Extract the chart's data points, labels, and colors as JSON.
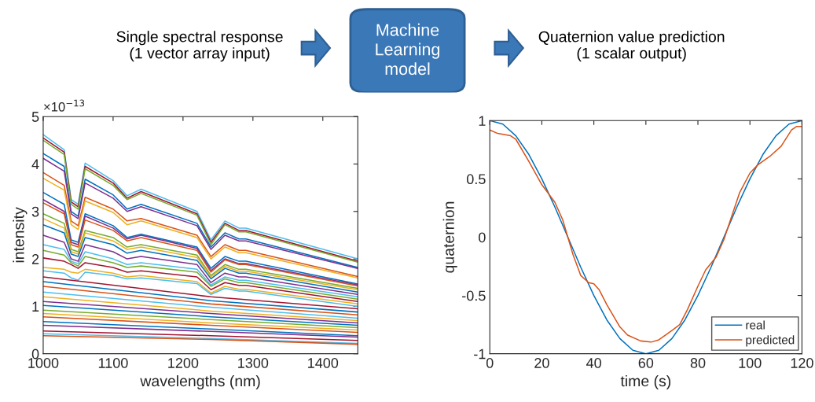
{
  "chart_data": [
    {
      "type": "other",
      "annotations": [
        "Single spectral response\n(1 vector array input)",
        "Machine\nLearning\nmodel",
        "Quaternion value prediction\n(1 scalar output)"
      ]
    },
    {
      "type": "line",
      "xlabel": "wavelengths (nm)",
      "ylabel": "intensity",
      "annotations": [
        "×10$^{−13}$"
      ],
      "xlim": [
        1000,
        1450
      ],
      "ylim": [
        0,
        5
      ],
      "xticks": [
        1000,
        1100,
        1200,
        1300,
        1400
      ],
      "yticks": [
        0,
        1,
        2,
        3,
        4,
        5
      ],
      "grid": false,
      "legend": false,
      "x": [
        1000,
        1030,
        1040,
        1050,
        1060,
        1100,
        1120,
        1140,
        1220,
        1240,
        1260,
        1280,
        1290,
        1450
      ],
      "series": [
        {
          "color": "#4dbeee",
          "values": [
            4.62,
            4.3,
            3.25,
            3.15,
            4.02,
            3.65,
            3.33,
            3.47,
            3.0,
            2.4,
            2.8,
            2.65,
            2.65,
            2.0
          ]
        },
        {
          "color": "#a2142f",
          "values": [
            4.55,
            4.25,
            3.2,
            3.1,
            3.95,
            3.6,
            3.28,
            3.42,
            2.95,
            2.35,
            2.75,
            2.6,
            2.6,
            1.95
          ]
        },
        {
          "color": "#77ac30",
          "values": [
            4.5,
            4.2,
            3.15,
            3.05,
            3.9,
            3.55,
            3.25,
            3.38,
            2.92,
            2.3,
            2.72,
            2.57,
            2.57,
            1.93
          ]
        },
        {
          "color": "#0072bd",
          "values": [
            4.22,
            3.95,
            3.0,
            2.9,
            3.68,
            3.35,
            3.05,
            3.15,
            2.75,
            2.25,
            2.55,
            2.42,
            2.42,
            1.82
          ]
        },
        {
          "color": "#7e2f8e",
          "values": [
            4.12,
            3.85,
            2.95,
            2.85,
            3.6,
            3.28,
            3.0,
            3.1,
            2.7,
            2.2,
            2.5,
            2.38,
            2.38,
            1.8
          ]
        },
        {
          "color": "#d95319",
          "values": [
            3.82,
            3.55,
            2.8,
            2.7,
            3.3,
            3.05,
            2.8,
            2.85,
            2.5,
            2.05,
            2.3,
            2.18,
            2.18,
            1.63
          ]
        },
        {
          "color": "#edb120",
          "values": [
            3.7,
            3.45,
            2.72,
            2.62,
            3.22,
            2.98,
            2.72,
            2.8,
            2.45,
            2.0,
            2.25,
            2.13,
            2.13,
            1.6
          ]
        },
        {
          "color": "#0072bd",
          "values": [
            3.4,
            3.15,
            2.4,
            2.35,
            2.95,
            2.7,
            2.45,
            2.52,
            2.25,
            1.8,
            2.05,
            1.95,
            1.95,
            1.47
          ]
        },
        {
          "color": "#7e2f8e",
          "values": [
            3.25,
            3.0,
            2.35,
            2.3,
            2.9,
            2.65,
            2.42,
            2.5,
            2.22,
            1.75,
            2.0,
            1.9,
            1.9,
            1.45
          ]
        },
        {
          "color": "#d95319",
          "values": [
            3.18,
            2.95,
            2.3,
            2.25,
            2.82,
            2.6,
            2.38,
            2.45,
            2.18,
            1.72,
            1.98,
            1.88,
            1.88,
            1.43
          ]
        },
        {
          "color": "#77ac30",
          "values": [
            2.95,
            2.75,
            2.2,
            2.15,
            2.6,
            2.45,
            2.25,
            2.3,
            2.08,
            1.65,
            1.88,
            1.78,
            1.78,
            1.38
          ]
        },
        {
          "color": "#edb120",
          "values": [
            2.85,
            2.65,
            2.15,
            2.1,
            2.55,
            2.38,
            2.2,
            2.25,
            2.03,
            1.62,
            1.84,
            1.74,
            1.74,
            1.35
          ]
        },
        {
          "color": "#0072bd",
          "values": [
            2.72,
            2.55,
            2.1,
            2.05,
            2.45,
            2.3,
            2.12,
            2.18,
            1.97,
            1.58,
            1.8,
            1.7,
            1.7,
            1.3
          ]
        },
        {
          "color": "#7e2f8e",
          "values": [
            2.5,
            2.35,
            2.0,
            1.95,
            2.3,
            2.15,
            2.0,
            2.05,
            1.88,
            1.5,
            1.7,
            1.62,
            1.62,
            1.25
          ]
        },
        {
          "color": "#4dbeee",
          "values": [
            2.3,
            2.2,
            1.95,
            1.9,
            2.15,
            2.0,
            1.88,
            1.92,
            1.78,
            1.45,
            1.62,
            1.55,
            1.55,
            1.2
          ]
        },
        {
          "color": "#77ac30",
          "values": [
            2.18,
            2.08,
            1.92,
            1.85,
            2.05,
            1.92,
            1.82,
            1.85,
            1.72,
            1.42,
            1.58,
            1.5,
            1.5,
            1.15
          ]
        },
        {
          "color": "#a2142f",
          "values": [
            2.02,
            1.95,
            1.88,
            1.8,
            1.92,
            1.82,
            1.72,
            1.75,
            1.62,
            1.35,
            1.5,
            1.44,
            1.44,
            1.1
          ]
        },
        {
          "color": "#edb120",
          "values": [
            1.82,
            1.78,
            1.72,
            1.7,
            1.78,
            1.7,
            1.62,
            1.65,
            1.52,
            1.28,
            1.42,
            1.36,
            1.36,
            1.05
          ]
        },
        {
          "color": "#4dbeee",
          "values": [
            1.75,
            1.7,
            1.6,
            1.55,
            1.72,
            1.65,
            1.58,
            1.6,
            1.48,
            1.25,
            1.38,
            1.32,
            1.32,
            1.0
          ]
        },
        {
          "color": "#a2142f",
          "x": [
            1000,
            1240,
            1450
          ],
          "values": [
            1.62,
            1.2,
            0.95
          ]
        },
        {
          "color": "#0072bd",
          "x": [
            1000,
            1240,
            1450
          ],
          "values": [
            1.52,
            1.12,
            0.88
          ]
        },
        {
          "color": "#d95319",
          "x": [
            1000,
            1240,
            1450
          ],
          "values": [
            1.42,
            1.05,
            0.82
          ]
        },
        {
          "color": "#4dbeee",
          "x": [
            1000,
            1240,
            1450
          ],
          "values": [
            1.3,
            0.98,
            0.75
          ]
        },
        {
          "color": "#edb120",
          "x": [
            1000,
            1240,
            1450
          ],
          "values": [
            1.2,
            0.9,
            0.7
          ]
        },
        {
          "color": "#7e2f8e",
          "x": [
            1000,
            1240,
            1450
          ],
          "values": [
            1.1,
            0.85,
            0.65
          ]
        },
        {
          "color": "#0072bd",
          "x": [
            1000,
            1240,
            1450
          ],
          "values": [
            1.02,
            0.78,
            0.6
          ]
        },
        {
          "color": "#77ac30",
          "x": [
            1000,
            1240,
            1450
          ],
          "values": [
            0.92,
            0.72,
            0.55
          ]
        },
        {
          "color": "#edb120",
          "x": [
            1000,
            1240,
            1450
          ],
          "values": [
            0.85,
            0.65,
            0.5
          ]
        },
        {
          "color": "#d95319",
          "x": [
            1000,
            1240,
            1450
          ],
          "values": [
            0.78,
            0.6,
            0.45
          ]
        },
        {
          "color": "#0072bd",
          "x": [
            1000,
            1240,
            1450
          ],
          "values": [
            0.68,
            0.52,
            0.38
          ]
        },
        {
          "color": "#7e2f8e",
          "x": [
            1000,
            1240,
            1450
          ],
          "values": [
            0.6,
            0.47,
            0.35
          ]
        },
        {
          "color": "#a2142f",
          "x": [
            1000,
            1240,
            1450
          ],
          "values": [
            0.48,
            0.38,
            0.28
          ]
        },
        {
          "color": "#4dbeee",
          "x": [
            1000,
            1240,
            1450
          ],
          "values": [
            0.42,
            0.32,
            0.22
          ]
        },
        {
          "color": "#d95319",
          "x": [
            1000,
            1240,
            1450
          ],
          "values": [
            0.38,
            0.3,
            0.2
          ]
        }
      ]
    },
    {
      "type": "line",
      "xlabel": "time (s)",
      "ylabel": "quaternion",
      "xlim": [
        0,
        120
      ],
      "ylim": [
        -1,
        1
      ],
      "xticks": [
        0,
        20,
        40,
        60,
        80,
        100,
        120
      ],
      "yticks": [
        -1,
        -0.5,
        0,
        0.5,
        1
      ],
      "grid": false,
      "legend": "bottom right",
      "series": [
        {
          "name": "real",
          "color": "#0072bd",
          "x": [
            0,
            5,
            10,
            15,
            20,
            25,
            30,
            35,
            40,
            45,
            50,
            55,
            60,
            65,
            70,
            75,
            80,
            85,
            90,
            95,
            100,
            105,
            110,
            115,
            120
          ],
          "values": [
            1,
            0.97,
            0.87,
            0.71,
            0.5,
            0.26,
            0,
            -0.26,
            -0.5,
            -0.71,
            -0.87,
            -0.97,
            -1,
            -0.97,
            -0.87,
            -0.71,
            -0.5,
            -0.26,
            0,
            0.26,
            0.5,
            0.71,
            0.87,
            0.97,
            1
          ]
        },
        {
          "name": "predicted",
          "color": "#d95319",
          "x": [
            0,
            3,
            8,
            10,
            15,
            20,
            25,
            28,
            30,
            32,
            35,
            38,
            40,
            42,
            45,
            50,
            53,
            58,
            62,
            65,
            70,
            73,
            76,
            80,
            83,
            87,
            90,
            93,
            96,
            100,
            103,
            108,
            112,
            116,
            118,
            120
          ],
          "values": [
            0.92,
            0.89,
            0.87,
            0.84,
            0.65,
            0.45,
            0.3,
            0.15,
            0.0,
            -0.15,
            -0.33,
            -0.39,
            -0.4,
            -0.45,
            -0.58,
            -0.77,
            -0.84,
            -0.89,
            -0.9,
            -0.88,
            -0.8,
            -0.75,
            -0.62,
            -0.42,
            -0.28,
            -0.17,
            -0.02,
            0.18,
            0.38,
            0.55,
            0.62,
            0.7,
            0.78,
            0.92,
            0.95,
            0.95
          ]
        }
      ]
    }
  ]
}
